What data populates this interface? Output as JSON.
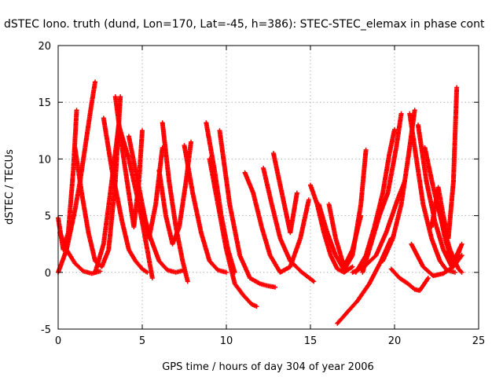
{
  "chart_data": {
    "type": "scatter",
    "title": "dSTEC Iono. truth (dund, Lon=170, Lat=-45, h=386): STEC-STEC_elemax in phase cont",
    "xlabel": "GPS time / hours of day 304 of year 2006",
    "ylabel": "dSTEC  / TECUs",
    "xlim": [
      0,
      25
    ],
    "ylim": [
      -5,
      20
    ],
    "xticks": [
      0,
      5,
      10,
      15,
      20,
      25
    ],
    "yticks": [
      -5,
      0,
      5,
      10,
      15,
      20
    ],
    "grid": true,
    "marker": "+",
    "color": "#ff0000",
    "series": [
      {
        "x": [
          0.0,
          0.5,
          1.0,
          1.3,
          1.6,
          2.0,
          2.2
        ],
        "y": [
          0.0,
          2.0,
          5.5,
          8.0,
          11.0,
          15.0,
          16.8
        ]
      },
      {
        "x": [
          0.0,
          0.3,
          0.6,
          0.9,
          1.1
        ],
        "y": [
          4.8,
          2.0,
          3.5,
          9.0,
          14.3
        ]
      },
      {
        "x": [
          0.1,
          0.5,
          1.0,
          1.5,
          2.0,
          2.5
        ],
        "y": [
          3.5,
          2.0,
          0.8,
          0.1,
          -0.1,
          0.1
        ]
      },
      {
        "x": [
          1.0,
          1.4,
          1.8,
          2.2,
          2.6,
          3.0,
          3.4,
          3.7
        ],
        "y": [
          11.0,
          7.0,
          3.5,
          1.0,
          0.5,
          2.0,
          8.0,
          15.5
        ]
      },
      {
        "x": [
          2.2,
          2.7,
          3.1,
          3.6,
          4.2,
          4.8,
          5.3,
          5.6
        ],
        "y": [
          0.0,
          2.5,
          7.0,
          13.0,
          10.0,
          6.0,
          2.0,
          -0.5
        ]
      },
      {
        "x": [
          2.7,
          3.2,
          3.8,
          4.2,
          4.6,
          5.0,
          5.3
        ],
        "y": [
          13.6,
          9.0,
          4.5,
          2.0,
          1.0,
          0.3,
          0.0
        ]
      },
      {
        "x": [
          3.4,
          3.8,
          4.2,
          4.5,
          4.8,
          5.0
        ],
        "y": [
          15.5,
          11.0,
          7.0,
          4.0,
          8.0,
          12.5
        ]
      },
      {
        "x": [
          4.2,
          4.6,
          5.0,
          5.4,
          5.8,
          6.2
        ],
        "y": [
          12.0,
          9.0,
          6.0,
          3.0,
          6.0,
          11.0
        ]
      },
      {
        "x": [
          5.0,
          5.5,
          6.0,
          6.5,
          7.0,
          7.5
        ],
        "y": [
          5.5,
          3.0,
          1.0,
          0.2,
          0.0,
          0.2
        ]
      },
      {
        "x": [
          6.2,
          6.6,
          7.0,
          7.4,
          7.7
        ],
        "y": [
          13.2,
          8.0,
          4.0,
          1.0,
          -0.8
        ]
      },
      {
        "x": [
          6.0,
          6.4,
          6.8,
          7.2,
          7.6,
          7.9
        ],
        "y": [
          9.0,
          5.0,
          2.5,
          4.0,
          8.0,
          11.5
        ]
      },
      {
        "x": [
          7.5,
          8.0,
          8.5,
          9.0,
          9.5,
          10.0
        ],
        "y": [
          11.2,
          7.0,
          3.5,
          1.0,
          0.2,
          0.0
        ]
      },
      {
        "x": [
          8.8,
          9.3,
          9.7,
          10.1,
          10.5
        ],
        "y": [
          13.2,
          9.0,
          5.0,
          2.0,
          0.0
        ]
      },
      {
        "x": [
          9.0,
          9.5,
          10.0,
          10.5,
          11.0,
          11.5,
          11.8
        ],
        "y": [
          10.0,
          6.0,
          2.0,
          -1.0,
          -2.0,
          -2.8,
          -3.0
        ]
      },
      {
        "x": [
          9.6,
          10.2,
          10.8,
          11.4,
          12.0,
          12.5,
          12.9
        ],
        "y": [
          12.5,
          6.0,
          1.5,
          -0.5,
          -1.0,
          -1.2,
          -1.3
        ]
      },
      {
        "x": [
          11.1,
          11.6,
          12.1,
          12.6,
          13.2,
          13.8,
          14.4,
          14.9
        ],
        "y": [
          8.8,
          7.0,
          4.0,
          1.5,
          0.0,
          0.5,
          3.0,
          6.4
        ]
      },
      {
        "x": [
          12.2,
          12.7,
          13.2,
          13.8,
          14.5,
          15.2
        ],
        "y": [
          9.2,
          6.0,
          3.0,
          1.0,
          0.0,
          -0.8
        ]
      },
      {
        "x": [
          12.8,
          13.3,
          13.8,
          14.2
        ],
        "y": [
          10.5,
          7.0,
          3.5,
          7.0
        ]
      },
      {
        "x": [
          15.0,
          15.4,
          15.8,
          16.2,
          16.6,
          17.0,
          17.5
        ],
        "y": [
          7.7,
          6.0,
          3.5,
          1.5,
          0.3,
          0.0,
          0.5
        ]
      },
      {
        "x": [
          15.5,
          16.0,
          16.5,
          17.0,
          17.5,
          18.0,
          18.3
        ],
        "y": [
          6.0,
          3.5,
          1.5,
          0.2,
          1.5,
          6.0,
          10.8
        ]
      },
      {
        "x": [
          16.1,
          16.5,
          17.0,
          17.5,
          18.0
        ],
        "y": [
          6.0,
          3.0,
          0.5,
          2.0,
          5.0
        ]
      },
      {
        "x": [
          16.6,
          17.2,
          17.8,
          18.5,
          19.2,
          19.8
        ],
        "y": [
          -4.5,
          -3.5,
          -2.5,
          -1.0,
          1.0,
          3.0
        ]
      },
      {
        "x": [
          17.5,
          18.2,
          18.9,
          19.5,
          20.2,
          20.6
        ],
        "y": [
          0.0,
          0.5,
          1.5,
          3.5,
          6.5,
          8.0
        ]
      },
      {
        "x": [
          18.1,
          18.6,
          19.1,
          19.6,
          20.1,
          20.4
        ],
        "y": [
          0.0,
          2.5,
          5.0,
          7.0,
          11.0,
          14.0
        ]
      },
      {
        "x": [
          17.7,
          18.3,
          18.8,
          19.3,
          19.7,
          20.0
        ],
        "y": [
          0.0,
          1.5,
          4.0,
          7.0,
          10.5,
          12.6
        ]
      },
      {
        "x": [
          19.8,
          20.3,
          20.8,
          21.2,
          21.5,
          22.0
        ],
        "y": [
          0.3,
          -0.5,
          -1.0,
          -1.5,
          -1.6,
          -0.5
        ]
      },
      {
        "x": [
          19.3,
          19.9,
          20.4,
          20.8,
          21.2
        ],
        "y": [
          1.0,
          3.0,
          6.0,
          10.0,
          14.3
        ]
      },
      {
        "x": [
          20.9,
          21.3,
          21.7,
          22.2,
          22.7,
          23.1,
          23.6
        ],
        "y": [
          14.0,
          10.0,
          6.0,
          3.0,
          1.0,
          0.2,
          0.0
        ]
      },
      {
        "x": [
          21.4,
          21.9,
          22.4,
          22.9,
          23.4,
          23.9
        ],
        "y": [
          13.0,
          8.0,
          4.5,
          2.0,
          0.5,
          2.2
        ]
      },
      {
        "x": [
          21.8,
          22.3,
          22.8,
          23.3,
          23.8,
          24.0
        ],
        "y": [
          11.0,
          7.5,
          4.5,
          2.0,
          0.3,
          0.0
        ]
      },
      {
        "x": [
          21.0,
          21.7,
          22.3,
          22.9,
          23.5,
          24.0
        ],
        "y": [
          2.5,
          0.5,
          -0.3,
          -0.1,
          0.5,
          1.5
        ]
      },
      {
        "x": [
          22.2,
          22.6,
          22.9,
          23.2,
          23.5,
          23.7
        ],
        "y": [
          4.0,
          7.5,
          5.0,
          3.0,
          8.0,
          16.3
        ]
      },
      {
        "x": [
          22.6,
          23.0,
          23.5,
          24.0
        ],
        "y": [
          6.0,
          3.0,
          0.5,
          2.5
        ]
      }
    ]
  }
}
